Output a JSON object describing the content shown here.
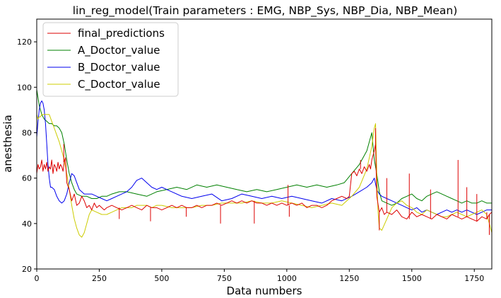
{
  "chart_data": {
    "type": "line",
    "title": "lin_reg_model(Train parameters : EMG, NBP_Sys, NBP_Dia, NBP_Mean)",
    "xlabel": "Data numbers",
    "ylabel": "anesthesia",
    "xlim": [
      0,
      1820
    ],
    "ylim": [
      20,
      130
    ],
    "xticks": [
      0,
      250,
      500,
      750,
      1000,
      1250,
      1500,
      1750
    ],
    "yticks": [
      20,
      40,
      60,
      80,
      100,
      120
    ],
    "grid": false,
    "legend_position": "top-left",
    "series": [
      {
        "name": "final_predictions",
        "color": "#dd0000",
        "x": [
          0,
          5,
          10,
          15,
          20,
          25,
          30,
          35,
          40,
          45,
          50,
          55,
          60,
          65,
          70,
          75,
          80,
          85,
          90,
          95,
          100,
          105,
          110,
          115,
          120,
          130,
          140,
          150,
          160,
          170,
          180,
          190,
          200,
          210,
          220,
          230,
          240,
          250,
          260,
          270,
          280,
          300,
          320,
          340,
          360,
          380,
          400,
          420,
          440,
          460,
          480,
          500,
          520,
          540,
          560,
          580,
          600,
          620,
          640,
          660,
          680,
          700,
          720,
          740,
          760,
          780,
          800,
          820,
          840,
          860,
          880,
          900,
          920,
          940,
          960,
          980,
          1000,
          1020,
          1040,
          1060,
          1080,
          1100,
          1120,
          1140,
          1160,
          1180,
          1200,
          1220,
          1240,
          1250,
          1260,
          1270,
          1280,
          1290,
          1300,
          1310,
          1320,
          1330,
          1335,
          1340,
          1345,
          1350,
          1355,
          1360,
          1370,
          1380,
          1390,
          1400,
          1420,
          1440,
          1460,
          1480,
          1500,
          1520,
          1540,
          1560,
          1580,
          1600,
          1620,
          1640,
          1660,
          1680,
          1700,
          1720,
          1740,
          1760,
          1780,
          1800,
          1810,
          1820
        ],
        "y": [
          62,
          66,
          64,
          65,
          68,
          63,
          66,
          64,
          67,
          63,
          65,
          64,
          68,
          62,
          66,
          65,
          63,
          67,
          64,
          66,
          65,
          63,
          67,
          69,
          58,
          55,
          50,
          53,
          48,
          49,
          52,
          50,
          47,
          48,
          46,
          49,
          47,
          48,
          47,
          46,
          47,
          48,
          47,
          46,
          47,
          48,
          47,
          46,
          48,
          47,
          47,
          46,
          47,
          48,
          47,
          48,
          47,
          47,
          48,
          47,
          48,
          48,
          49,
          48,
          49,
          50,
          49,
          50,
          49,
          50,
          49,
          49,
          48,
          49,
          48,
          49,
          48,
          49,
          48,
          49,
          47,
          48,
          48,
          47,
          48,
          50,
          51,
          52,
          51,
          52,
          62,
          63,
          61,
          64,
          62,
          65,
          63,
          66,
          64,
          68,
          70,
          72,
          75,
          52,
          45,
          47,
          44,
          45,
          44,
          46,
          43,
          42,
          45,
          43,
          44,
          43,
          42,
          44,
          43,
          42,
          44,
          43,
          42,
          43,
          42,
          41,
          43,
          42,
          44,
          45
        ],
        "spikes": [
          [
            108,
            75
          ],
          [
            330,
            42
          ],
          [
            455,
            41
          ],
          [
            598,
            43
          ],
          [
            735,
            40
          ],
          [
            870,
            40
          ],
          [
            1005,
            57
          ],
          [
            1010,
            43
          ],
          [
            1295,
            68
          ],
          [
            1355,
            82
          ],
          [
            1370,
            37
          ],
          [
            1400,
            60
          ],
          [
            1490,
            62
          ],
          [
            1575,
            55
          ],
          [
            1685,
            68
          ],
          [
            1720,
            56
          ],
          [
            1760,
            53
          ],
          [
            1800,
            45
          ],
          [
            1810,
            35
          ]
        ]
      },
      {
        "name": "A_Doctor_value",
        "color": "#008000",
        "x": [
          0,
          10,
          20,
          30,
          40,
          50,
          60,
          70,
          80,
          90,
          100,
          110,
          120,
          130,
          140,
          150,
          160,
          180,
          200,
          220,
          240,
          260,
          280,
          300,
          330,
          360,
          400,
          440,
          480,
          520,
          560,
          600,
          640,
          680,
          720,
          760,
          800,
          840,
          880,
          920,
          960,
          1000,
          1040,
          1080,
          1120,
          1160,
          1200,
          1230,
          1260,
          1290,
          1320,
          1340,
          1350,
          1360,
          1370,
          1380,
          1400,
          1420,
          1440,
          1460,
          1480,
          1500,
          1520,
          1540,
          1560,
          1580,
          1600,
          1620,
          1640,
          1660,
          1680,
          1700,
          1720,
          1740,
          1760,
          1780,
          1800,
          1820
        ],
        "y": [
          99,
          92,
          88,
          86,
          85,
          84,
          84,
          83,
          83,
          82,
          80,
          75,
          68,
          62,
          58,
          55,
          53,
          52,
          52,
          51,
          51,
          52,
          52,
          53,
          54,
          54,
          53,
          52,
          54,
          55,
          56,
          55,
          57,
          56,
          57,
          56,
          55,
          54,
          55,
          54,
          55,
          56,
          57,
          56,
          57,
          56,
          57,
          58,
          62,
          66,
          72,
          80,
          68,
          62,
          54,
          50,
          49,
          48,
          49,
          51,
          52,
          53,
          51,
          50,
          52,
          53,
          54,
          53,
          52,
          51,
          50,
          49,
          50,
          49,
          49,
          50,
          49,
          49
        ]
      },
      {
        "name": "B_Doctor_value",
        "color": "#0000ee",
        "x": [
          0,
          5,
          10,
          15,
          20,
          25,
          30,
          35,
          40,
          45,
          50,
          55,
          60,
          70,
          80,
          90,
          100,
          110,
          120,
          130,
          140,
          150,
          160,
          170,
          180,
          190,
          200,
          220,
          240,
          260,
          280,
          300,
          320,
          340,
          360,
          380,
          400,
          420,
          440,
          460,
          480,
          500,
          540,
          580,
          620,
          660,
          700,
          740,
          780,
          820,
          860,
          900,
          940,
          980,
          1020,
          1060,
          1100,
          1140,
          1180,
          1220,
          1260,
          1290,
          1320,
          1340,
          1350,
          1360,
          1370,
          1380,
          1400,
          1420,
          1440,
          1460,
          1480,
          1500,
          1520,
          1540,
          1560,
          1580,
          1600,
          1620,
          1640,
          1660,
          1680,
          1700,
          1720,
          1740,
          1760,
          1780,
          1800,
          1820
        ],
        "y": [
          78,
          85,
          90,
          93,
          94,
          93,
          90,
          84,
          75,
          66,
          60,
          56,
          56,
          55,
          52,
          50,
          49,
          50,
          53,
          58,
          62,
          61,
          58,
          55,
          54,
          53,
          53,
          53,
          52,
          51,
          50,
          51,
          52,
          53,
          54,
          56,
          59,
          60,
          58,
          56,
          55,
          56,
          54,
          52,
          51,
          52,
          53,
          50,
          51,
          53,
          52,
          51,
          52,
          51,
          52,
          51,
          50,
          49,
          51,
          50,
          52,
          54,
          56,
          58,
          60,
          55,
          53,
          52,
          51,
          50,
          49,
          48,
          47,
          46,
          47,
          45,
          46,
          45,
          44,
          45,
          46,
          45,
          46,
          45,
          46,
          45,
          44,
          45,
          46,
          46
        ]
      },
      {
        "name": "C_Doctor_value",
        "color": "#cccc00",
        "x": [
          0,
          5,
          10,
          15,
          20,
          25,
          30,
          40,
          50,
          60,
          70,
          80,
          90,
          100,
          110,
          120,
          130,
          140,
          150,
          160,
          170,
          180,
          190,
          200,
          210,
          220,
          240,
          260,
          280,
          300,
          320,
          340,
          360,
          380,
          400,
          420,
          440,
          460,
          480,
          500,
          540,
          580,
          620,
          660,
          700,
          740,
          780,
          820,
          860,
          900,
          940,
          980,
          1020,
          1060,
          1100,
          1140,
          1180,
          1220,
          1260,
          1290,
          1320,
          1340,
          1350,
          1355,
          1360,
          1365,
          1370,
          1380,
          1400,
          1420,
          1440,
          1460,
          1480,
          1500,
          1520,
          1540,
          1560,
          1580,
          1600,
          1620,
          1640,
          1660,
          1680,
          1700,
          1720,
          1740,
          1760,
          1780,
          1800,
          1810,
          1820
        ],
        "y": [
          88,
          86,
          87,
          87,
          88,
          88,
          88,
          88,
          88,
          85,
          82,
          79,
          76,
          72,
          68,
          62,
          55,
          48,
          42,
          38,
          35,
          34,
          36,
          40,
          44,
          46,
          45,
          44,
          44,
          45,
          46,
          47,
          47,
          47,
          48,
          48,
          48,
          47,
          48,
          48,
          47,
          47,
          47,
          48,
          48,
          49,
          49,
          49,
          50,
          49,
          49,
          50,
          49,
          48,
          47,
          48,
          49,
          48,
          52,
          56,
          64,
          74,
          82,
          84,
          62,
          45,
          38,
          37,
          42,
          47,
          49,
          50,
          48,
          47,
          45,
          44,
          46,
          45,
          44,
          43,
          43,
          44,
          45,
          44,
          43,
          44,
          45,
          46,
          44,
          40,
          36
        ]
      }
    ]
  }
}
